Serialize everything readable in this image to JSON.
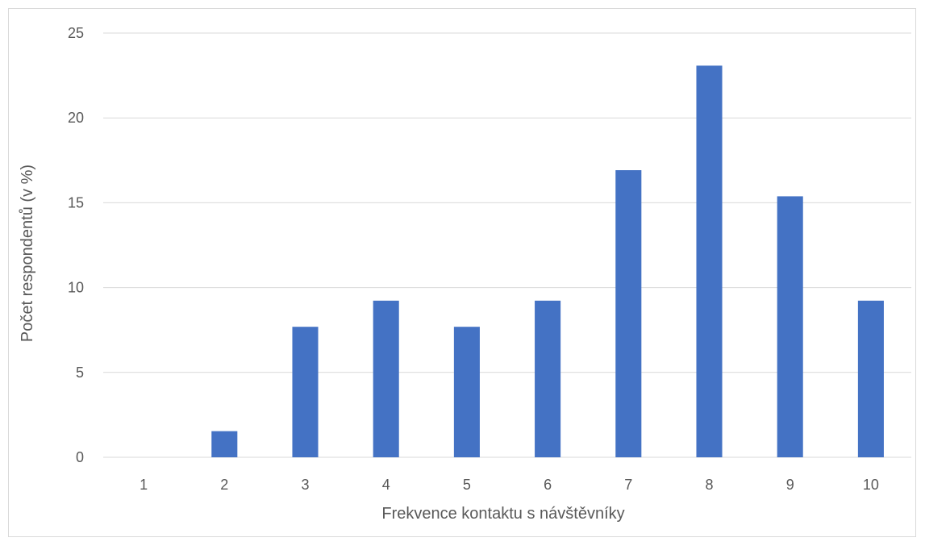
{
  "chart_data": {
    "type": "bar",
    "title": "",
    "xlabel": "Frekvence kontaktu s návštěvníky",
    "ylabel": "Počet respondentů (v %)",
    "categories": [
      "1",
      "2",
      "3",
      "4",
      "5",
      "6",
      "7",
      "8",
      "9",
      "10"
    ],
    "values": [
      0,
      1.54,
      7.69,
      9.23,
      7.69,
      9.23,
      16.92,
      23.08,
      15.38,
      9.23
    ],
    "ylim": [
      0,
      25
    ],
    "yticks": [
      0,
      5,
      10,
      15,
      20,
      25
    ],
    "grid": true,
    "legend": "none",
    "bar_color": "#4472c4",
    "grid_color": "#d9d9d9",
    "text_color": "#595959"
  }
}
